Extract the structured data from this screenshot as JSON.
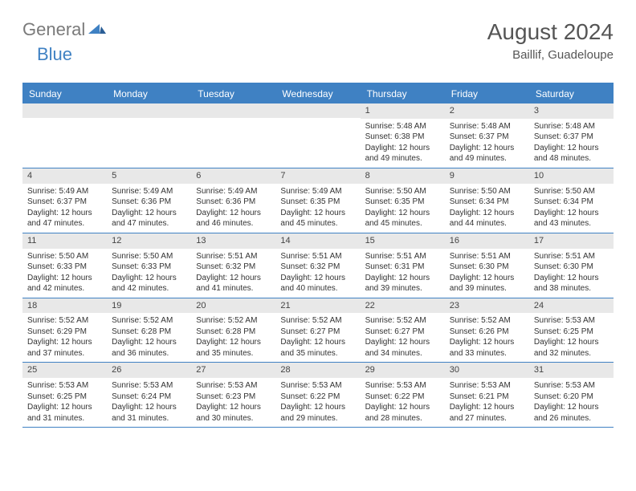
{
  "logo": {
    "general": "General",
    "blue": "Blue"
  },
  "title": {
    "month": "August 2024",
    "location": "Baillif, Guadeloupe"
  },
  "colors": {
    "accent": "#3f81c3",
    "grey_strip": "#e8e8e8",
    "text": "#333333"
  },
  "dow": [
    "Sunday",
    "Monday",
    "Tuesday",
    "Wednesday",
    "Thursday",
    "Friday",
    "Saturday"
  ],
  "weeks": [
    [
      null,
      null,
      null,
      null,
      {
        "n": "1",
        "sr": "5:48 AM",
        "ss": "6:38 PM",
        "dl": "12 hours and 49 minutes."
      },
      {
        "n": "2",
        "sr": "5:48 AM",
        "ss": "6:37 PM",
        "dl": "12 hours and 49 minutes."
      },
      {
        "n": "3",
        "sr": "5:48 AM",
        "ss": "6:37 PM",
        "dl": "12 hours and 48 minutes."
      }
    ],
    [
      {
        "n": "4",
        "sr": "5:49 AM",
        "ss": "6:37 PM",
        "dl": "12 hours and 47 minutes."
      },
      {
        "n": "5",
        "sr": "5:49 AM",
        "ss": "6:36 PM",
        "dl": "12 hours and 47 minutes."
      },
      {
        "n": "6",
        "sr": "5:49 AM",
        "ss": "6:36 PM",
        "dl": "12 hours and 46 minutes."
      },
      {
        "n": "7",
        "sr": "5:49 AM",
        "ss": "6:35 PM",
        "dl": "12 hours and 45 minutes."
      },
      {
        "n": "8",
        "sr": "5:50 AM",
        "ss": "6:35 PM",
        "dl": "12 hours and 45 minutes."
      },
      {
        "n": "9",
        "sr": "5:50 AM",
        "ss": "6:34 PM",
        "dl": "12 hours and 44 minutes."
      },
      {
        "n": "10",
        "sr": "5:50 AM",
        "ss": "6:34 PM",
        "dl": "12 hours and 43 minutes."
      }
    ],
    [
      {
        "n": "11",
        "sr": "5:50 AM",
        "ss": "6:33 PM",
        "dl": "12 hours and 42 minutes."
      },
      {
        "n": "12",
        "sr": "5:50 AM",
        "ss": "6:33 PM",
        "dl": "12 hours and 42 minutes."
      },
      {
        "n": "13",
        "sr": "5:51 AM",
        "ss": "6:32 PM",
        "dl": "12 hours and 41 minutes."
      },
      {
        "n": "14",
        "sr": "5:51 AM",
        "ss": "6:32 PM",
        "dl": "12 hours and 40 minutes."
      },
      {
        "n": "15",
        "sr": "5:51 AM",
        "ss": "6:31 PM",
        "dl": "12 hours and 39 minutes."
      },
      {
        "n": "16",
        "sr": "5:51 AM",
        "ss": "6:30 PM",
        "dl": "12 hours and 39 minutes."
      },
      {
        "n": "17",
        "sr": "5:51 AM",
        "ss": "6:30 PM",
        "dl": "12 hours and 38 minutes."
      }
    ],
    [
      {
        "n": "18",
        "sr": "5:52 AM",
        "ss": "6:29 PM",
        "dl": "12 hours and 37 minutes."
      },
      {
        "n": "19",
        "sr": "5:52 AM",
        "ss": "6:28 PM",
        "dl": "12 hours and 36 minutes."
      },
      {
        "n": "20",
        "sr": "5:52 AM",
        "ss": "6:28 PM",
        "dl": "12 hours and 35 minutes."
      },
      {
        "n": "21",
        "sr": "5:52 AM",
        "ss": "6:27 PM",
        "dl": "12 hours and 35 minutes."
      },
      {
        "n": "22",
        "sr": "5:52 AM",
        "ss": "6:27 PM",
        "dl": "12 hours and 34 minutes."
      },
      {
        "n": "23",
        "sr": "5:52 AM",
        "ss": "6:26 PM",
        "dl": "12 hours and 33 minutes."
      },
      {
        "n": "24",
        "sr": "5:53 AM",
        "ss": "6:25 PM",
        "dl": "12 hours and 32 minutes."
      }
    ],
    [
      {
        "n": "25",
        "sr": "5:53 AM",
        "ss": "6:25 PM",
        "dl": "12 hours and 31 minutes."
      },
      {
        "n": "26",
        "sr": "5:53 AM",
        "ss": "6:24 PM",
        "dl": "12 hours and 31 minutes."
      },
      {
        "n": "27",
        "sr": "5:53 AM",
        "ss": "6:23 PM",
        "dl": "12 hours and 30 minutes."
      },
      {
        "n": "28",
        "sr": "5:53 AM",
        "ss": "6:22 PM",
        "dl": "12 hours and 29 minutes."
      },
      {
        "n": "29",
        "sr": "5:53 AM",
        "ss": "6:22 PM",
        "dl": "12 hours and 28 minutes."
      },
      {
        "n": "30",
        "sr": "5:53 AM",
        "ss": "6:21 PM",
        "dl": "12 hours and 27 minutes."
      },
      {
        "n": "31",
        "sr": "5:53 AM",
        "ss": "6:20 PM",
        "dl": "12 hours and 26 minutes."
      }
    ]
  ],
  "labels": {
    "sunrise": "Sunrise: ",
    "sunset": "Sunset: ",
    "daylight": "Daylight: "
  }
}
